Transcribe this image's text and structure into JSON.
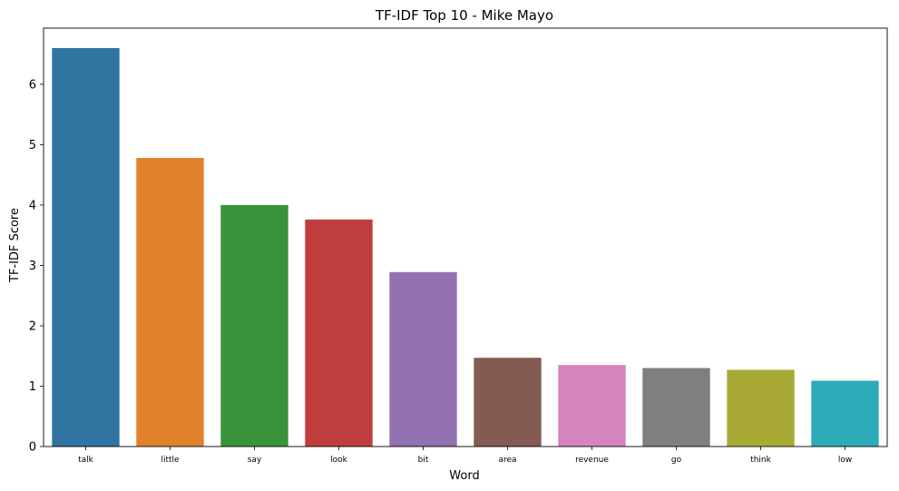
{
  "chart_data": {
    "type": "bar",
    "title": "TF-IDF Top 10 - Mike Mayo",
    "xlabel": "Word",
    "ylabel": "TF-IDF Score",
    "categories": [
      "talk",
      "little",
      "say",
      "look",
      "bit",
      "area",
      "revenue",
      "go",
      "think",
      "low"
    ],
    "values": [
      6.6,
      4.78,
      4.0,
      3.76,
      2.89,
      1.47,
      1.35,
      1.3,
      1.27,
      1.09
    ],
    "colors": [
      "#3274a1",
      "#e1812c",
      "#3a923a",
      "#c03d3e",
      "#9372b2",
      "#845b53",
      "#d684bd",
      "#7f7f7f",
      "#a9aa35",
      "#2eabb8"
    ],
    "ylim": [
      0,
      6.93
    ],
    "yticks": [
      0,
      1,
      2,
      3,
      4,
      5,
      6
    ],
    "grid": false,
    "legend": "none"
  }
}
